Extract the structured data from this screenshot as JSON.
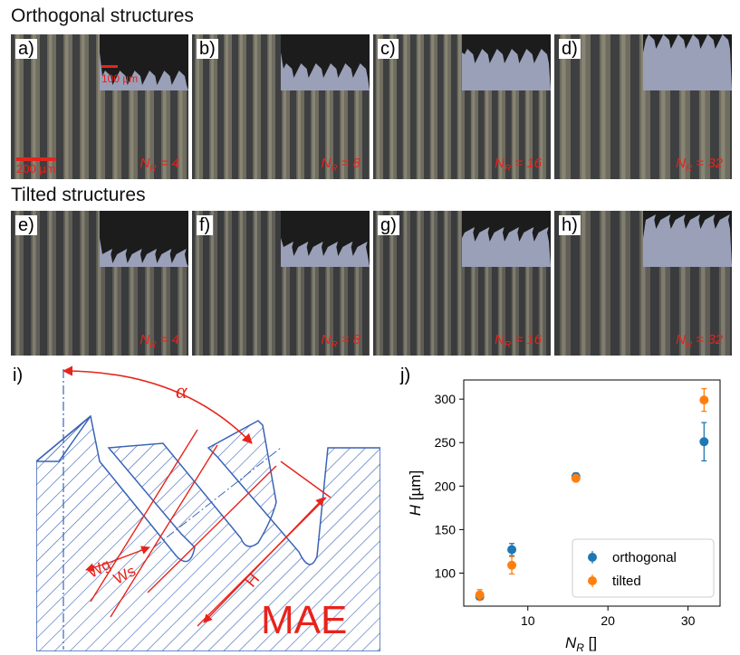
{
  "headings": {
    "orthogonal": "Orthogonal structures",
    "tilted": "Tilted structures"
  },
  "panels": [
    {
      "label": "a)",
      "nr_prefix": "N",
      "nr_sub": "R",
      "nr_value": "= 4",
      "inset_scale": "100 µm",
      "scale": "200 µm"
    },
    {
      "label": "b)",
      "nr_prefix": "N",
      "nr_sub": "R",
      "nr_value": "= 8"
    },
    {
      "label": "c)",
      "nr_prefix": "N",
      "nr_sub": "R",
      "nr_value": "= 16"
    },
    {
      "label": "d)",
      "nr_prefix": "N",
      "nr_sub": "R",
      "nr_value": "= 32"
    },
    {
      "label": "e)",
      "nr_prefix": "N",
      "nr_sub": "R",
      "nr_value": "= 4"
    },
    {
      "label": "f)",
      "nr_prefix": "N",
      "nr_sub": "R",
      "nr_value": "= 8"
    },
    {
      "label": "g)",
      "nr_prefix": "N",
      "nr_sub": "R",
      "nr_value": "= 16"
    },
    {
      "label": "h)",
      "nr_prefix": "N",
      "nr_sub": "R",
      "nr_value": "= 32"
    }
  ],
  "diagram": {
    "label": "i)",
    "alpha": "α",
    "wg": "Wg",
    "ws": "Ws",
    "h": "H",
    "mae": "MAE",
    "color_hatch": "#3a63b6",
    "color_dim": "#e8231b"
  },
  "chart_data": {
    "label": "j)",
    "type": "scatter",
    "xlabel_main": "N",
    "xlabel_sub": "R",
    "xlabel_unit": "[]",
    "ylabel_main": "H",
    "ylabel_unit": "[µm]",
    "xlim": [
      2,
      34
    ],
    "ylim": [
      62,
      322
    ],
    "xticks": [
      10,
      20,
      30
    ],
    "yticks": [
      100,
      150,
      200,
      250,
      300
    ],
    "legend_position": "bottom-right",
    "series": [
      {
        "name": "orthogonal",
        "color": "#1f77b4",
        "x": [
          4,
          8,
          16,
          32
        ],
        "y": [
          73,
          127,
          211,
          251
        ],
        "err": [
          3,
          7,
          4,
          22
        ]
      },
      {
        "name": "tilted",
        "color": "#ff7f0e",
        "x": [
          4,
          8,
          16,
          32
        ],
        "y": [
          75,
          109,
          209,
          299
        ],
        "err": [
          6,
          10,
          3,
          13
        ]
      }
    ]
  }
}
